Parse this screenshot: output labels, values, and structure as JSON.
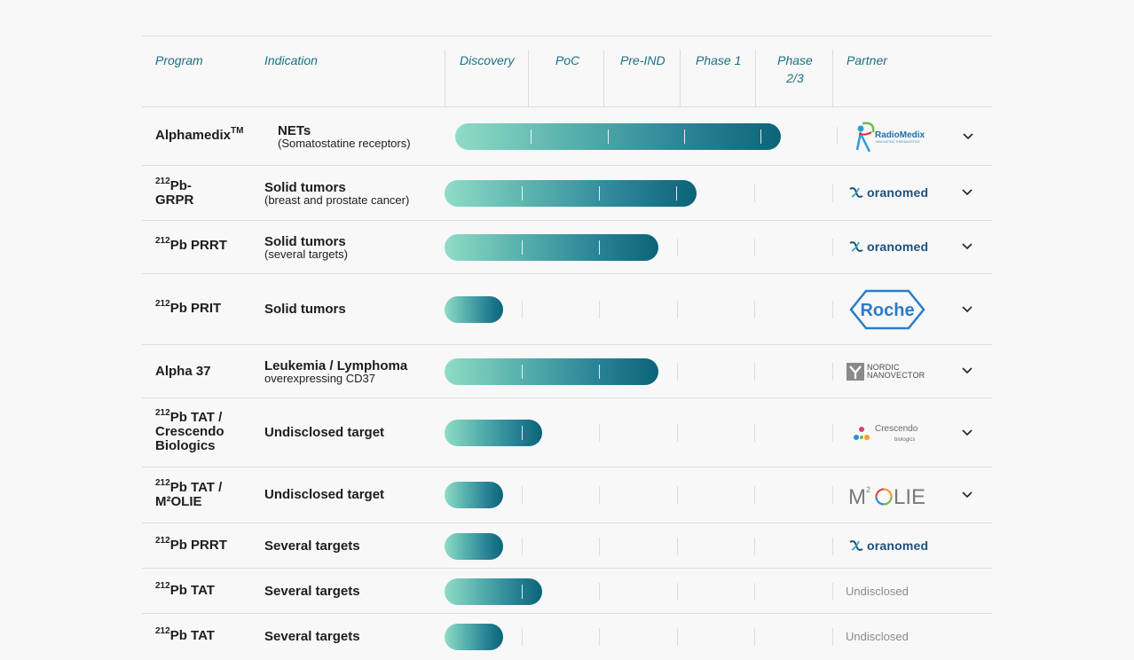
{
  "header": {
    "program": "Program",
    "indication": "Indication",
    "discovery": "Discovery",
    "poc": "PoC",
    "preind": "Pre-IND",
    "phase1": "Phase 1",
    "phase23_a": "Phase",
    "phase23_b": "2/3",
    "partner": "Partner"
  },
  "colors": {
    "accent": "#1d6f80",
    "bar_start": "#8fdcc6",
    "bar_end": "#0b6478"
  },
  "rows": [
    {
      "program_pre": "Alphamedix",
      "program_sup": "TM",
      "indication": "NETs",
      "indication_sub": "(Somatostatine receptors)",
      "stage": "Phase 2/3",
      "partner": "RadioMedix",
      "partner_sub": "INNOVATING THERANOSTICS",
      "partner_icon": "radiomedix-logo",
      "expand": true
    },
    {
      "program_sup": "212",
      "program_pre": "Pb-",
      "program_line2": "GRPR",
      "indication": "Solid tumors",
      "indication_sub": "(breast and prostate cancer)",
      "stage": "Phase 1",
      "partner": "oranomed",
      "partner_icon": "oranomed-logo",
      "expand": true
    },
    {
      "program_sup": "212",
      "program_pre": "Pb PRRT",
      "indication": "Solid tumors",
      "indication_sub": "(several targets)",
      "stage": "Pre-IND",
      "partner": "oranomed",
      "partner_icon": "oranomed-logo",
      "expand": true
    },
    {
      "program_sup": "212",
      "program_pre": "Pb PRIT",
      "indication": "Solid tumors",
      "indication_sub": "",
      "stage": "Discovery",
      "partner": "Roche",
      "partner_icon": "roche-logo",
      "expand": true
    },
    {
      "program_pre": "Alpha 37",
      "indication": "Leukemia / Lymphoma",
      "indication_sub": "overexpressing CD37",
      "stage": "Pre-IND",
      "partner": "NORDIC NANOVECTOR",
      "partner_a": "NORDIC",
      "partner_b": "NANOVECTOR",
      "partner_icon": "nordic-nanovector-logo",
      "expand": true
    },
    {
      "program_sup": "212",
      "program_pre": "Pb TAT /",
      "program_line2": "Crescendo",
      "program_line3": "Biologics",
      "indication": "Undisclosed target",
      "indication_sub": "",
      "stage": "PoC",
      "partner": "Crescendo",
      "partner_sub": "biologics",
      "partner_icon": "crescendo-logo",
      "expand": true
    },
    {
      "program_sup": "212",
      "program_pre": "Pb TAT /",
      "program_line2": "M²OLIE",
      "indication": "Undisclosed target",
      "indication_sub": "",
      "stage": "Discovery",
      "partner": "M²OLIE",
      "partner_icon": "m2olie-logo",
      "expand": true
    },
    {
      "program_sup": "212",
      "program_pre": "Pb PRRT",
      "indication": "Several targets",
      "indication_sub": "",
      "stage": "Discovery",
      "partner": "oranomed",
      "partner_icon": "oranomed-logo",
      "expand": false
    },
    {
      "program_sup": "212",
      "program_pre": "Pb TAT",
      "indication": "Several targets",
      "indication_sub": "",
      "stage": "PoC",
      "partner": "Undisclosed",
      "partner_icon": "",
      "expand": false
    },
    {
      "program_sup": "212",
      "program_pre": "Pb TAT",
      "indication": "Several targets",
      "indication_sub": "",
      "stage": "Discovery",
      "partner": "Undisclosed",
      "partner_icon": "",
      "expand": false
    }
  ]
}
